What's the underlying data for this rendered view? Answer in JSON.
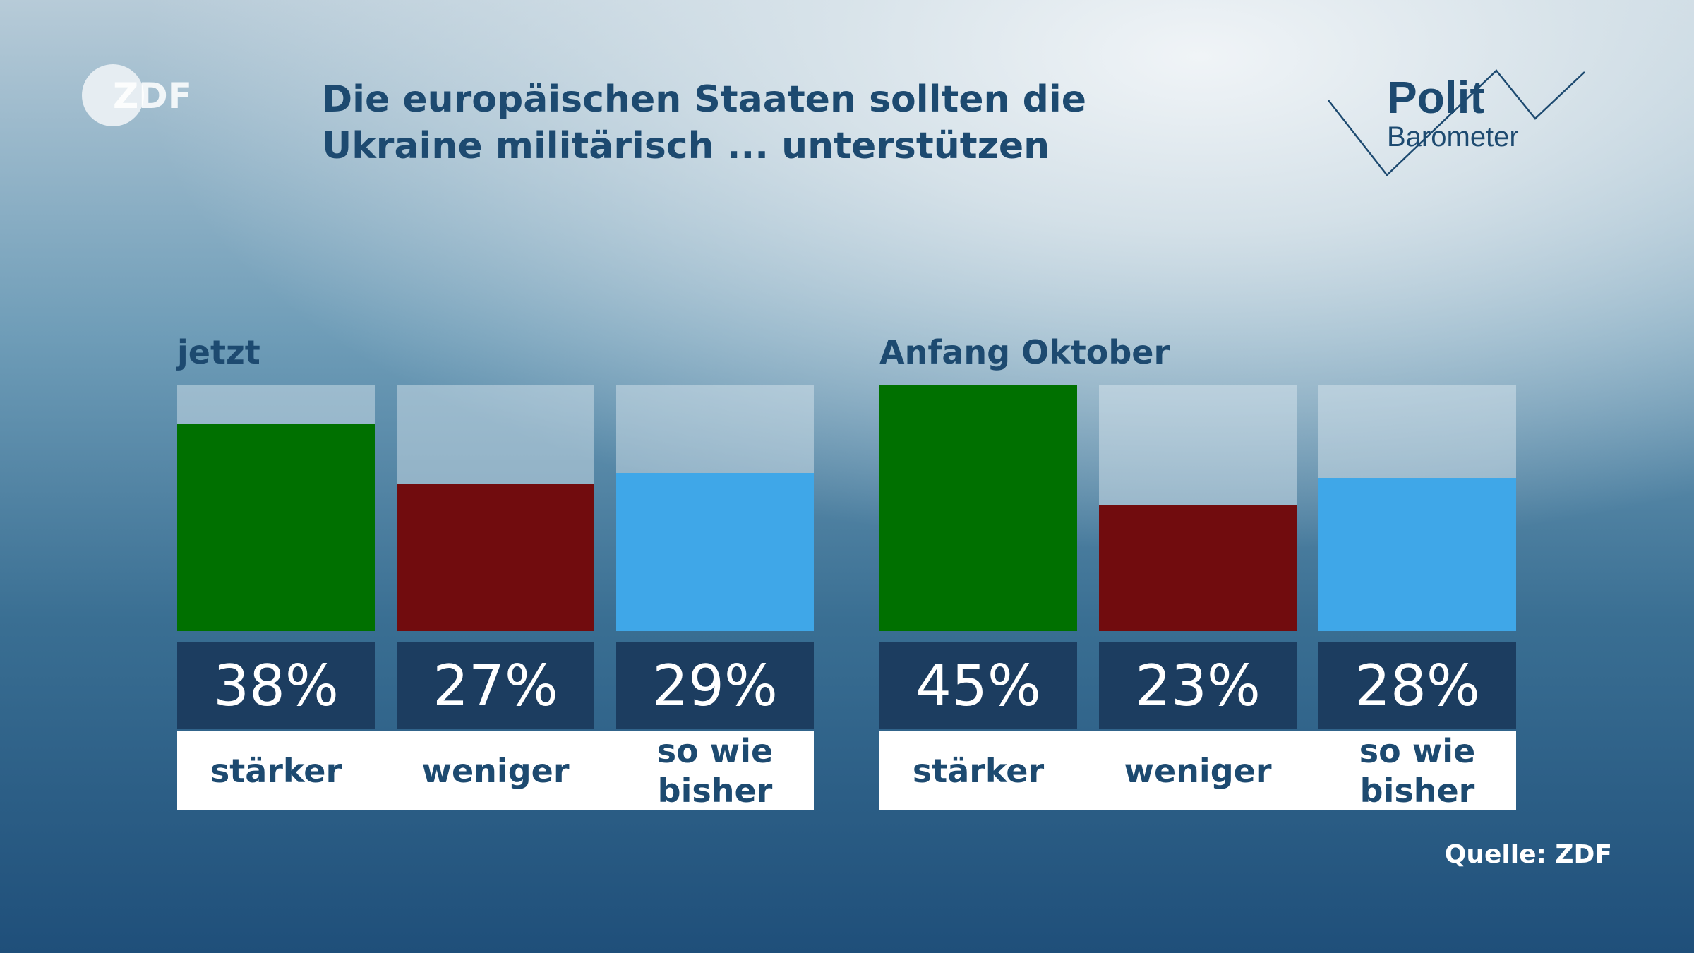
{
  "logo": "ZDF",
  "title": "Die europäischen Staaten sollten die Ukraine militärisch ... unterstützen",
  "brand": {
    "top": "Polit",
    "bottom": "Barometer"
  },
  "source": "Quelle: ZDF",
  "chart_data": [
    {
      "type": "bar",
      "subtitle": "jetzt",
      "categories": [
        "stärker",
        "weniger",
        "so wie bisher"
      ],
      "values": [
        38,
        27,
        29
      ],
      "value_labels": [
        "38%",
        "27%",
        "29%"
      ],
      "colors": [
        "#007000",
        "#710c0e",
        "#3fa7e8"
      ],
      "ylim": [
        0,
        45
      ]
    },
    {
      "type": "bar",
      "subtitle": "Anfang Oktober",
      "categories": [
        "stärker",
        "weniger",
        "so wie bisher"
      ],
      "values": [
        45,
        23,
        28
      ],
      "value_labels": [
        "45%",
        "23%",
        "28%"
      ],
      "colors": [
        "#007000",
        "#710c0e",
        "#3fa7e8"
      ],
      "ylim": [
        0,
        45
      ]
    }
  ]
}
